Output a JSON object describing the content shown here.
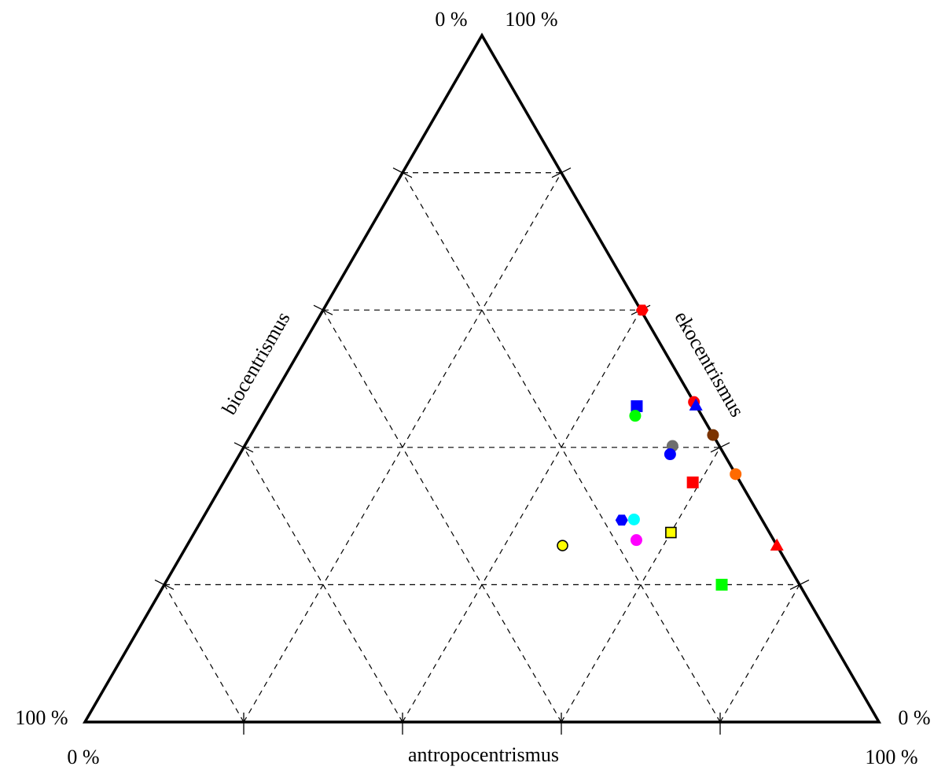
{
  "chart_data": {
    "type": "scatter",
    "subtype": "ternary",
    "axes": {
      "left": "biocentrismus",
      "right": "ekocentrismus",
      "bottom": "antropocentrismus"
    },
    "corner_labels": {
      "top_left": "0 %",
      "top_right": "100 %",
      "left_a": "100 %",
      "left_b": "0 %",
      "right_a": "0 %",
      "right_b": "100 %"
    },
    "grid": true,
    "grid_step_percent": 20,
    "points_note": "each point: e = ekocentrismus %, a = antropocentrismus % (biocentrismus = 100 - e - a)",
    "points": [
      {
        "e": 60.3,
        "a": 40.0,
        "color": "#ff0000",
        "shape": "hexagon",
        "outline": false
      },
      {
        "e": 46.6,
        "a": 53.4,
        "color": "#ff0000",
        "shape": "circle",
        "outline": false
      },
      {
        "e": 46.1,
        "a": 53.9,
        "color": "#0000ff",
        "shape": "triangle",
        "outline": false
      },
      {
        "e": 46.0,
        "a": 46.5,
        "color": "#0000ff",
        "shape": "square",
        "outline": false
      },
      {
        "e": 44.6,
        "a": 47.0,
        "color": "#00ff00",
        "shape": "circle",
        "outline": false
      },
      {
        "e": 41.8,
        "a": 58.2,
        "color": "#7b3300",
        "shape": "circle",
        "outline": false
      },
      {
        "e": 36.1,
        "a": 63.9,
        "color": "#ff6a00",
        "shape": "circle",
        "outline": false
      },
      {
        "e": 40.2,
        "a": 53.9,
        "color": "#6e6e6e",
        "shape": "circle",
        "outline": false
      },
      {
        "e": 39.0,
        "a": 54.2,
        "color": "#0000ff",
        "shape": "circle",
        "outline": false
      },
      {
        "e": 25.7,
        "a": 74.3,
        "color": "#ff0000",
        "shape": "triangle",
        "outline": false
      },
      {
        "e": 34.9,
        "a": 59.1,
        "color": "#ff0000",
        "shape": "square",
        "outline": false
      },
      {
        "e": 29.4,
        "a": 52.9,
        "color": "#0000ff",
        "shape": "hexagon",
        "outline": false
      },
      {
        "e": 29.5,
        "a": 54.4,
        "color": "#00ffff",
        "shape": "circle",
        "outline": false
      },
      {
        "e": 27.6,
        "a": 60.0,
        "color": "#ffff00",
        "shape": "square",
        "outline": true
      },
      {
        "e": 26.5,
        "a": 56.2,
        "color": "#ff00ff",
        "shape": "circle",
        "outline": false
      },
      {
        "e": 25.7,
        "a": 47.3,
        "color": "#ffff00",
        "shape": "circle",
        "outline": true
      },
      {
        "e": 20.0,
        "a": 70.2,
        "color": "#00ff00",
        "shape": "square",
        "outline": false
      }
    ]
  }
}
